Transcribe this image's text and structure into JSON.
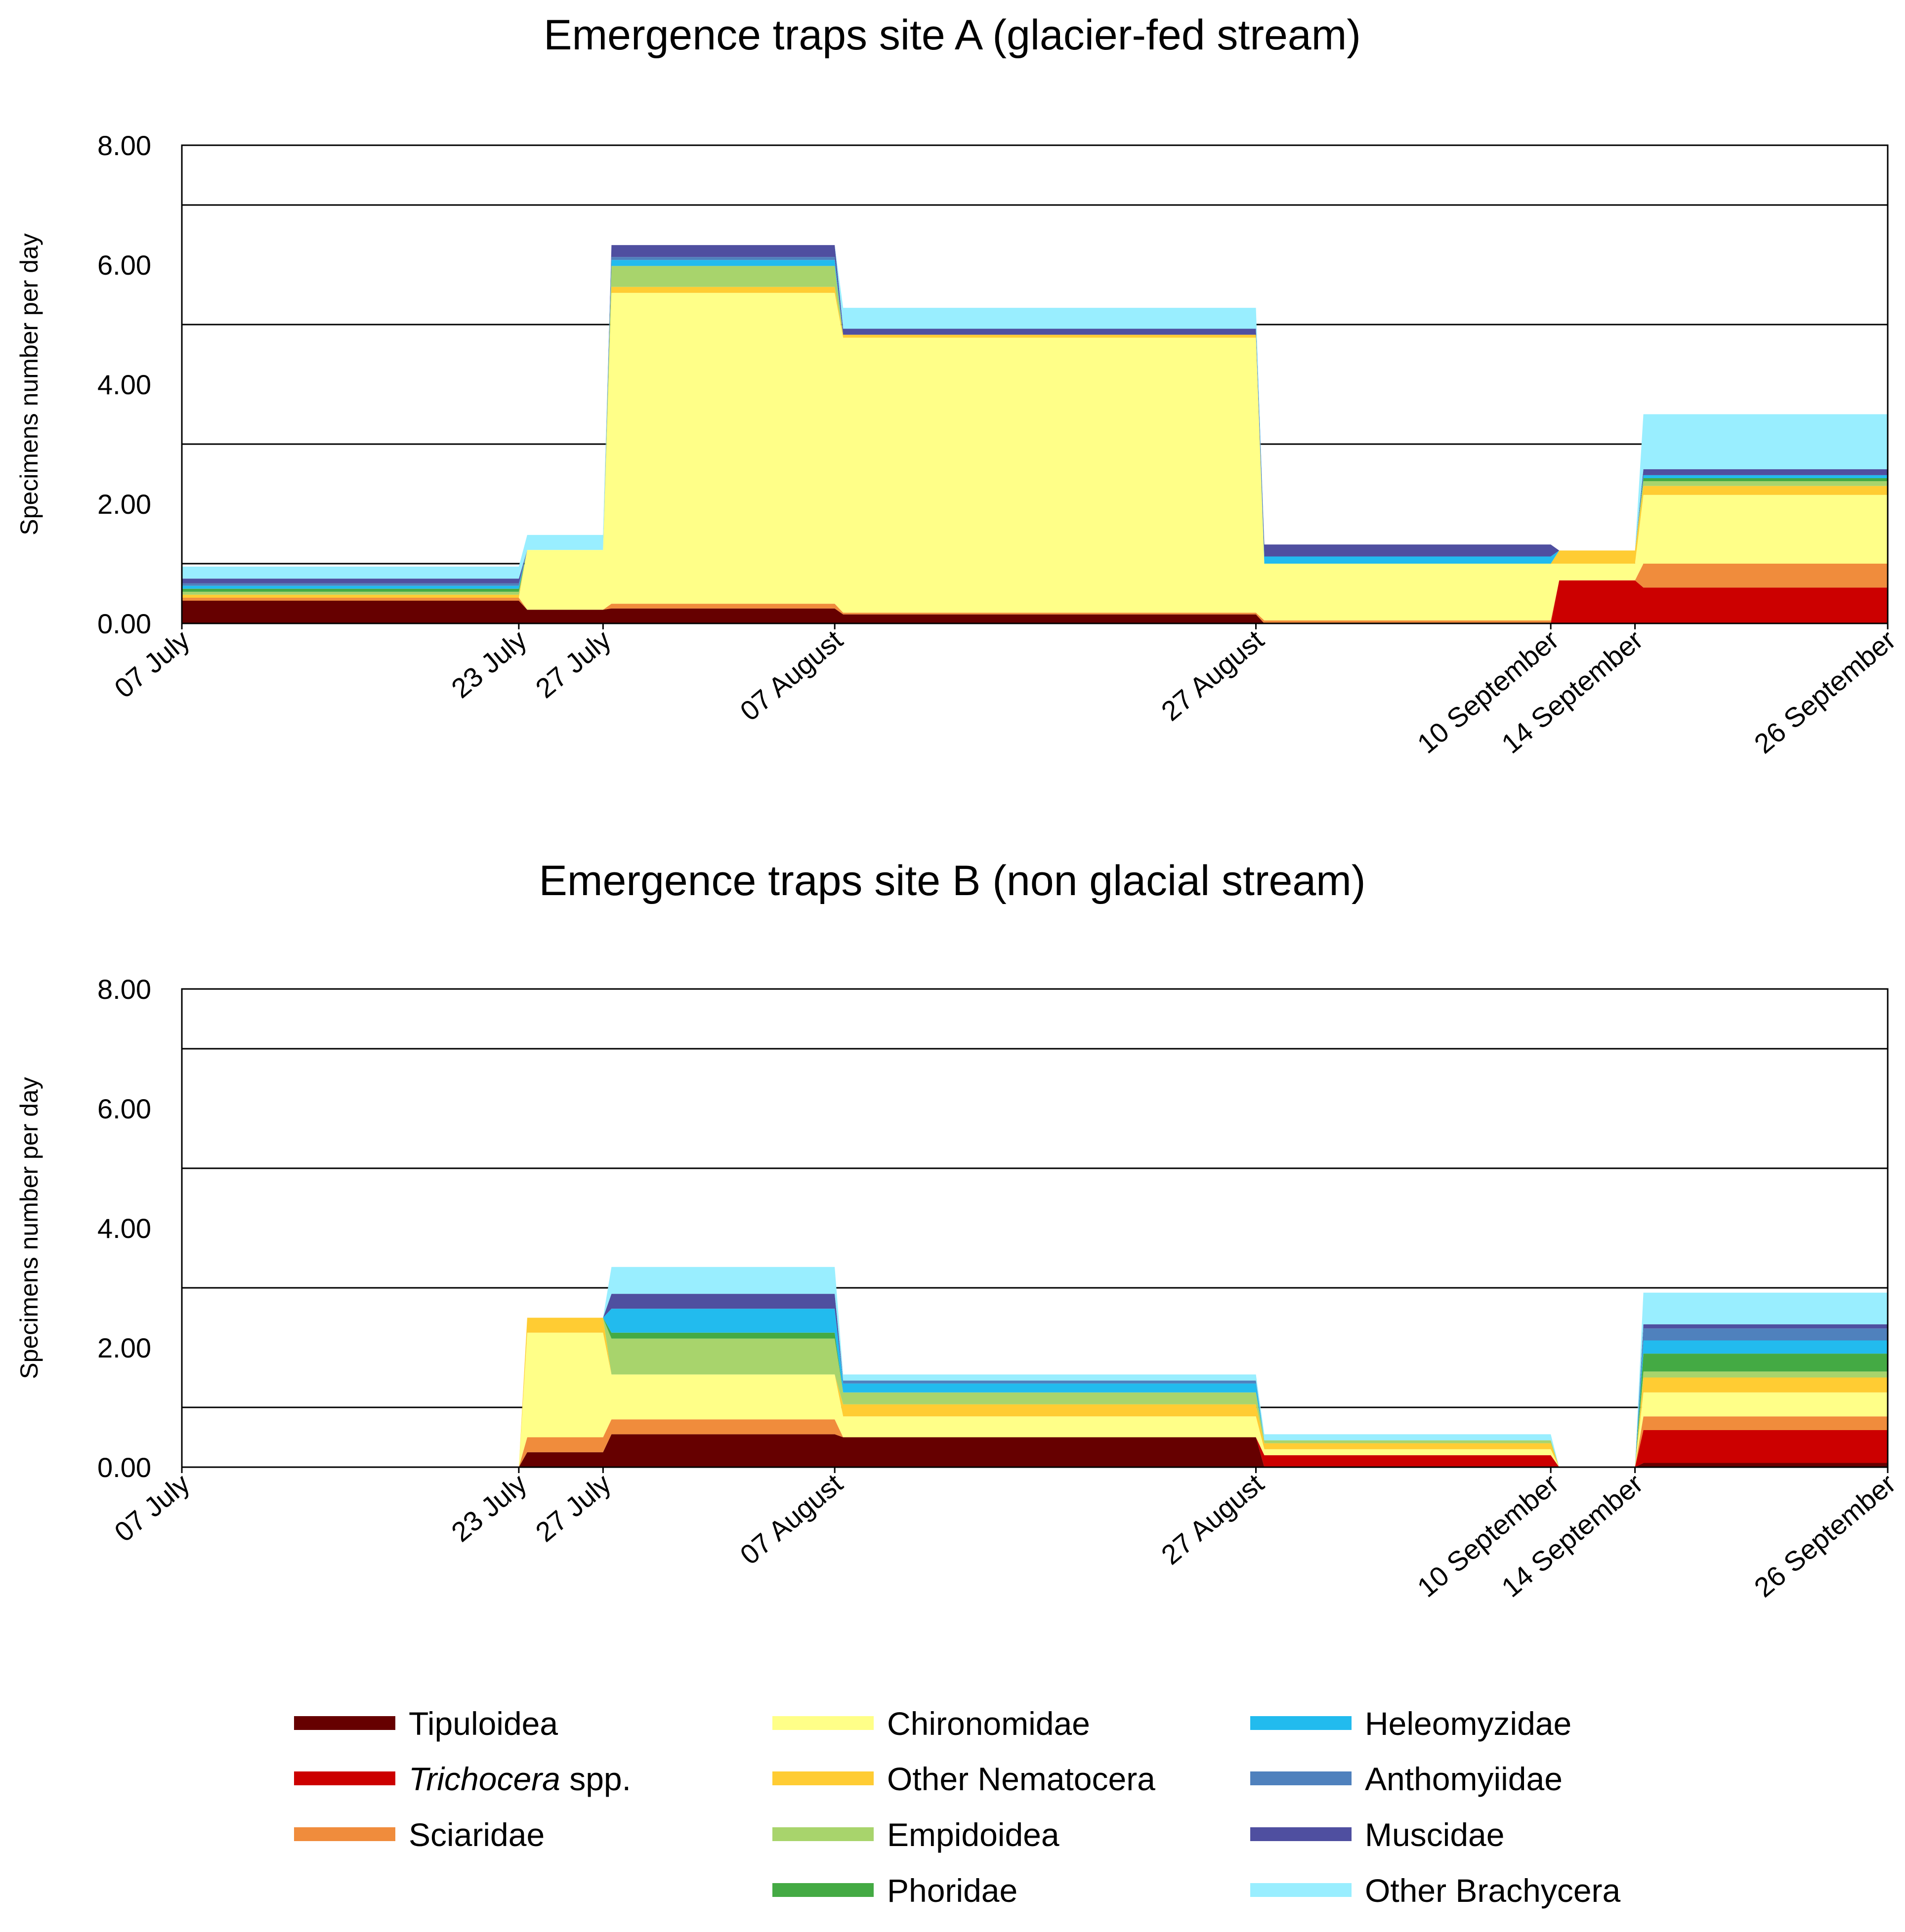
{
  "legend": [
    {
      "name": "Tipuloidea",
      "color": "#660000"
    },
    {
      "name": "Trichocera",
      "suffix": " spp.",
      "color": "#CC0000"
    },
    {
      "name": "Sciaridae",
      "color": "#F08C3C"
    },
    {
      "name": "Chironomidae",
      "color": "#FFFF88"
    },
    {
      "name": "Other Nematocera",
      "color": "#FFCC33"
    },
    {
      "name": "Empidoidea",
      "color": "#A8D46C"
    },
    {
      "name": "Phoridae",
      "color": "#44AA44"
    },
    {
      "name": "Heleomyzidae",
      "color": "#22BBEE"
    },
    {
      "name": "Anthomyiidae",
      "color": "#4F81BD"
    },
    {
      "name": "Muscidae",
      "color": "#4F4FA0"
    },
    {
      "name": "Other Brachycera",
      "color": "#99EEFF"
    }
  ],
  "chart_data": [
    {
      "type": "area",
      "title": "Emergence traps site A (glacier-fed stream)",
      "xlabel": "",
      "ylabel": "Specimens number per day",
      "ylim": [
        0,
        8
      ],
      "yticks": [
        0,
        2,
        4,
        6,
        8
      ],
      "ytick_labels": [
        "0.00",
        "2.00",
        "4.00",
        "6.00",
        "8.00"
      ],
      "xlim": [
        0,
        81
      ],
      "xticks": [
        {
          "day": 0,
          "label": "07 July"
        },
        {
          "day": 16,
          "label": "23 July"
        },
        {
          "day": 20,
          "label": "27 July"
        },
        {
          "day": 31,
          "label": "07 August"
        },
        {
          "day": 51,
          "label": "27 August"
        },
        {
          "day": 65,
          "label": "10 September"
        },
        {
          "day": 69,
          "label": "14 September"
        },
        {
          "day": 81,
          "label": "26 September"
        }
      ],
      "periods": [
        {
          "start": 0,
          "end": 16
        },
        {
          "start": 16,
          "end": 20
        },
        {
          "start": 20,
          "end": 31
        },
        {
          "start": 31,
          "end": 51
        },
        {
          "start": 51,
          "end": 65
        },
        {
          "start": 65,
          "end": 69
        },
        {
          "start": 69,
          "end": 81
        }
      ],
      "series": [
        {
          "name": "Tipuloidea",
          "values": [
            0.38,
            0.23,
            0.25,
            0.15,
            0.0,
            0.0,
            0.0
          ]
        },
        {
          "name": "Trichocera spp.",
          "values": [
            0.0,
            0.0,
            0.0,
            0.0,
            0.0,
            0.72,
            0.6
          ]
        },
        {
          "name": "Sciaridae",
          "values": [
            0.05,
            0.0,
            0.08,
            0.03,
            0.05,
            0.0,
            0.4
          ]
        },
        {
          "name": "Chironomidae",
          "values": [
            0.0,
            1.0,
            5.2,
            4.6,
            0.95,
            0.28,
            1.15
          ]
        },
        {
          "name": "Other Nematocera",
          "values": [
            0.05,
            0.0,
            0.1,
            0.05,
            0.0,
            0.22,
            0.15
          ]
        },
        {
          "name": "Empidoidea",
          "values": [
            0.05,
            0.0,
            0.35,
            0.0,
            0.0,
            0.0,
            0.08
          ]
        },
        {
          "name": "Phoridae",
          "values": [
            0.05,
            0.0,
            0.0,
            0.0,
            0.0,
            0.0,
            0.05
          ]
        },
        {
          "name": "Heleomyzidae",
          "values": [
            0.05,
            0.0,
            0.1,
            0.0,
            0.12,
            0.0,
            0.05
          ]
        },
        {
          "name": "Anthomyiidae",
          "values": [
            0.04,
            0.0,
            0.05,
            0.0,
            0.0,
            0.0,
            0.0
          ]
        },
        {
          "name": "Muscidae",
          "values": [
            0.08,
            0.0,
            0.2,
            0.1,
            0.2,
            0.0,
            0.1
          ]
        },
        {
          "name": "Other Brachycera",
          "values": [
            0.2,
            0.25,
            0.0,
            0.35,
            0.0,
            0.0,
            0.92
          ]
        }
      ]
    },
    {
      "type": "area",
      "title": "Emergence traps site B (non glacial stream)",
      "xlabel": "",
      "ylabel": "Specimens number per day",
      "ylim": [
        0,
        8
      ],
      "yticks": [
        0,
        2,
        4,
        6,
        8
      ],
      "ytick_labels": [
        "0.00",
        "2.00",
        "4.00",
        "6.00",
        "8.00"
      ],
      "xlim": [
        0,
        81
      ],
      "xticks": [
        {
          "day": 0,
          "label": "07 July"
        },
        {
          "day": 16,
          "label": "23 July"
        },
        {
          "day": 20,
          "label": "27 July"
        },
        {
          "day": 31,
          "label": "07 August"
        },
        {
          "day": 51,
          "label": "27 August"
        },
        {
          "day": 65,
          "label": "10 September"
        },
        {
          "day": 69,
          "label": "14 September"
        },
        {
          "day": 81,
          "label": "26 September"
        }
      ],
      "periods": [
        {
          "start": 0,
          "end": 16
        },
        {
          "start": 16,
          "end": 20
        },
        {
          "start": 20,
          "end": 31
        },
        {
          "start": 31,
          "end": 51
        },
        {
          "start": 51,
          "end": 65
        },
        {
          "start": 65,
          "end": 69
        },
        {
          "start": 69,
          "end": 81
        }
      ],
      "series": [
        {
          "name": "Tipuloidea",
          "values": [
            0.0,
            0.25,
            0.55,
            0.5,
            0.0,
            0.0,
            0.07
          ]
        },
        {
          "name": "Trichocera spp.",
          "values": [
            0.0,
            0.0,
            0.0,
            0.0,
            0.2,
            0.0,
            0.55
          ]
        },
        {
          "name": "Sciaridae",
          "values": [
            0.0,
            0.25,
            0.25,
            0.0,
            0.0,
            0.0,
            0.23
          ]
        },
        {
          "name": "Chironomidae",
          "values": [
            0.0,
            1.75,
            0.75,
            0.35,
            0.1,
            0.0,
            0.4
          ]
        },
        {
          "name": "Other Nematocera",
          "values": [
            0.0,
            0.25,
            0.0,
            0.2,
            0.1,
            0.0,
            0.25
          ]
        },
        {
          "name": "Empidoidea",
          "values": [
            0.0,
            0.0,
            0.6,
            0.2,
            0.05,
            0.0,
            0.1
          ]
        },
        {
          "name": "Phoridae",
          "values": [
            0.0,
            0.0,
            0.1,
            0.0,
            0.0,
            0.0,
            0.3
          ]
        },
        {
          "name": "Heleomyzidae",
          "values": [
            0.0,
            0.0,
            0.4,
            0.15,
            0.0,
            0.0,
            0.22
          ]
        },
        {
          "name": "Anthomyiidae",
          "values": [
            0.0,
            0.0,
            0.0,
            0.05,
            0.0,
            0.0,
            0.2
          ]
        },
        {
          "name": "Muscidae",
          "values": [
            0.0,
            0.0,
            0.25,
            0.0,
            0.0,
            0.0,
            0.07
          ]
        },
        {
          "name": "Other Brachycera",
          "values": [
            0.0,
            0.0,
            0.45,
            0.1,
            0.1,
            0.0,
            0.53
          ]
        }
      ]
    }
  ]
}
